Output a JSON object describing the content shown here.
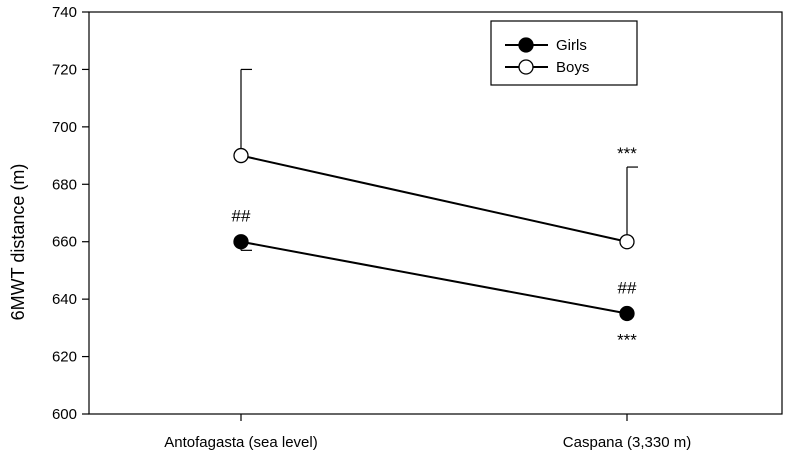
{
  "chart_data": {
    "type": "line",
    "categories": [
      "Antofagasta (sea level)",
      "Caspana (3,330 m)"
    ],
    "ylabel": "6MWT distance (m)",
    "ylim": [
      600,
      740
    ],
    "yticks": [
      600,
      620,
      640,
      660,
      680,
      700,
      720,
      740
    ],
    "grid": false,
    "legend_position": "top-right",
    "series": [
      {
        "name": "Girls",
        "marker": "filled-circle",
        "values": [
          660,
          635
        ],
        "error_direction": "down",
        "errors": [
          3,
          0
        ],
        "annotations_above": [
          "##",
          "##"
        ],
        "annotations_below": [
          "",
          "***"
        ]
      },
      {
        "name": "Boys",
        "marker": "open-circle",
        "values": [
          690,
          660
        ],
        "error_direction": "up",
        "errors": [
          30,
          26
        ],
        "annotations_above": [
          "",
          "***"
        ],
        "annotations_below": [
          "",
          ""
        ]
      }
    ],
    "colors": {
      "line": "#000000",
      "filled": "#000000",
      "open": "#ffffff"
    }
  }
}
